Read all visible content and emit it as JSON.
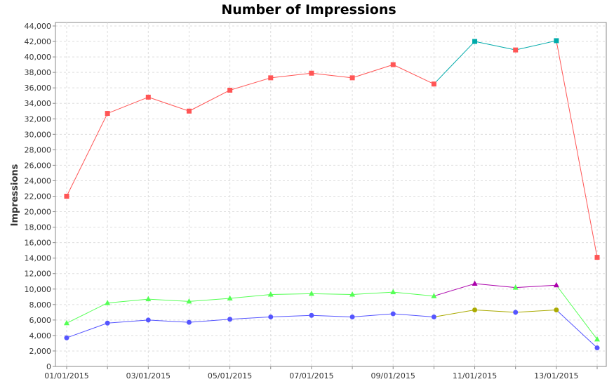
{
  "chart_data": {
    "type": "line",
    "title": "Number of Impressions",
    "xlabel": "",
    "ylabel": "Impressions",
    "x": [
      "01/01/2015",
      "02/01/2015",
      "03/01/2015",
      "04/01/2015",
      "05/01/2015",
      "06/01/2015",
      "07/01/2015",
      "08/01/2015",
      "09/01/2015",
      "10/01/2015",
      "11/01/2015",
      "12/01/2015",
      "13/01/2015",
      "14/01/2015"
    ],
    "x_tick_labels": [
      "01/01/2015",
      "03/01/2015",
      "05/01/2015",
      "07/01/2015",
      "09/01/2015",
      "11/01/2015",
      "13/01/2015"
    ],
    "ylim": [
      0,
      44000
    ],
    "y_ticks": [
      0,
      2000,
      4000,
      6000,
      8000,
      10000,
      12000,
      14000,
      16000,
      18000,
      20000,
      22000,
      24000,
      26000,
      28000,
      30000,
      32000,
      34000,
      36000,
      38000,
      40000,
      42000,
      44000
    ],
    "y_tick_labels": [
      "0",
      "2,000",
      "4,000",
      "6,000",
      "8,000",
      "10,000",
      "12,000",
      "14,000",
      "16,000",
      "18,000",
      "20,000",
      "22,000",
      "24,000",
      "26,000",
      "28,000",
      "30,000",
      "32,000",
      "34,000",
      "36,000",
      "38,000",
      "40,000",
      "42,000",
      "44,000"
    ],
    "grid": true,
    "series": [
      {
        "marker": "square",
        "values": [
          22000,
          32700,
          34800,
          33000,
          35700,
          37300,
          37900,
          37300,
          39000,
          36500,
          42000,
          40900,
          42100,
          14100
        ],
        "marker_colors": [
          "#ff5555",
          "#ff5555",
          "#ff5555",
          "#ff5555",
          "#ff5555",
          "#ff5555",
          "#ff5555",
          "#ff5555",
          "#ff5555",
          "#ff5555",
          "#00aaaa",
          "#ff5555",
          "#00aaaa",
          "#ff5555"
        ],
        "segment_colors": [
          "#ff5555",
          "#ff5555",
          "#ff5555",
          "#ff5555",
          "#ff5555",
          "#ff5555",
          "#ff5555",
          "#ff5555",
          "#ff5555",
          "#00aaaa",
          "#00aaaa",
          "#00aaaa",
          "#ff5555"
        ]
      },
      {
        "marker": "triangle",
        "values": [
          5600,
          8200,
          8700,
          8400,
          8800,
          9300,
          9400,
          9300,
          9600,
          9100,
          10700,
          10200,
          10500,
          3500
        ],
        "marker_colors": [
          "#55ff55",
          "#55ff55",
          "#55ff55",
          "#55ff55",
          "#55ff55",
          "#55ff55",
          "#55ff55",
          "#55ff55",
          "#55ff55",
          "#55ff55",
          "#aa00aa",
          "#55ff55",
          "#aa00aa",
          "#55ff55"
        ],
        "segment_colors": [
          "#55ff55",
          "#55ff55",
          "#55ff55",
          "#55ff55",
          "#55ff55",
          "#55ff55",
          "#55ff55",
          "#55ff55",
          "#55ff55",
          "#aa00aa",
          "#aa00aa",
          "#aa00aa",
          "#55ff55"
        ]
      },
      {
        "marker": "circle",
        "values": [
          3700,
          5600,
          6000,
          5700,
          6100,
          6400,
          6600,
          6400,
          6800,
          6400,
          7300,
          7000,
          7300,
          2400
        ],
        "marker_colors": [
          "#5555ff",
          "#5555ff",
          "#5555ff",
          "#5555ff",
          "#5555ff",
          "#5555ff",
          "#5555ff",
          "#5555ff",
          "#5555ff",
          "#5555ff",
          "#aaaa00",
          "#5555ff",
          "#aaaa00",
          "#5555ff"
        ],
        "segment_colors": [
          "#5555ff",
          "#5555ff",
          "#5555ff",
          "#5555ff",
          "#5555ff",
          "#5555ff",
          "#5555ff",
          "#5555ff",
          "#5555ff",
          "#aaaa00",
          "#aaaa00",
          "#aaaa00",
          "#5555ff"
        ]
      }
    ],
    "colors": {
      "background": "#ffffff",
      "grid": "#dddddd",
      "axis": "#888888",
      "text": "#333333"
    }
  }
}
